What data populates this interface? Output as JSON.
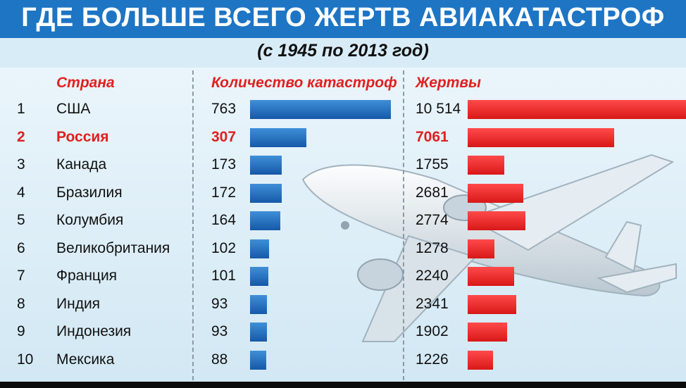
{
  "title": "ГДЕ БОЛЬШЕ ВСЕГО ЖЕРТВ АВИАКАТАСТРОФ",
  "subtitle": "(с 1945 по 2013 год)",
  "columns": {
    "country": "Страна",
    "count": "Количество катастроф",
    "victims": "Жертвы"
  },
  "colors": {
    "header": "#1d75c4",
    "count_bar": "#1a66b9",
    "victims_bar": "#e41e1e",
    "highlight_text": "#e02020"
  },
  "chart_data": {
    "type": "bar",
    "title": "ГДЕ БОЛЬШЕ ВСЕГО ЖЕРТВ АВИАКАТАСТРОФ",
    "subtitle": "(с 1945 по 2013 год)",
    "categories": [
      "США",
      "Россия",
      "Канада",
      "Бразилия",
      "Колумбия",
      "Великобритания",
      "Франция",
      "Индия",
      "Индонезия",
      "Мексика"
    ],
    "ranks": [
      "1",
      "2",
      "3",
      "4",
      "5",
      "6",
      "7",
      "8",
      "9",
      "10"
    ],
    "series": [
      {
        "name": "Количество катастроф",
        "values": [
          763,
          307,
          173,
          172,
          164,
          102,
          101,
          93,
          93,
          88
        ],
        "labels": [
          "763",
          "307",
          "173",
          "172",
          "164",
          "102",
          "101",
          "93",
          "93",
          "88"
        ]
      },
      {
        "name": "Жертвы",
        "values": [
          10514,
          7061,
          1755,
          2681,
          2774,
          1278,
          2240,
          2341,
          1902,
          1226
        ],
        "labels": [
          "10 514",
          "7061",
          "1755",
          "2681",
          "2774",
          "1278",
          "2240",
          "2341",
          "1902",
          "1226"
        ]
      }
    ],
    "highlight_index": 1,
    "orientation": "horizontal",
    "grid": false,
    "legend": "none"
  }
}
